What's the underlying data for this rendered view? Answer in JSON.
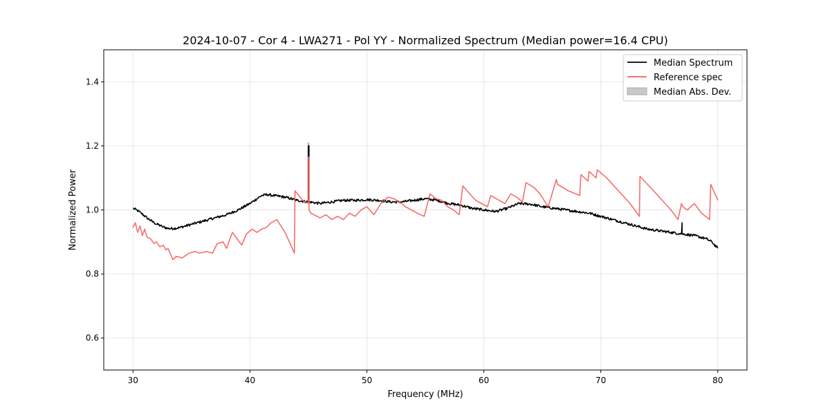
{
  "chart_data": {
    "type": "line",
    "title": "2024-10-07 - Cor 4 - LWA271 - Pol YY - Normalized Spectrum (Median power=16.4 CPU)",
    "xlabel": "Frequency (MHz)",
    "ylabel": "Normalized Power",
    "xlim": [
      27.5,
      82.5
    ],
    "ylim": [
      0.5,
      1.5
    ],
    "xticks": [
      30,
      40,
      50,
      60,
      70,
      80
    ],
    "xtick_labels": [
      "30",
      "40",
      "50",
      "60",
      "70",
      "80"
    ],
    "yticks": [
      0.6,
      0.8,
      1.0,
      1.2,
      1.4
    ],
    "ytick_labels": [
      "0.6",
      "0.8",
      "1.0",
      "1.2",
      "1.4"
    ],
    "grid": true,
    "legend": {
      "placement": "top-right",
      "entries": [
        "Median Spectrum",
        "Reference spec",
        "Median Abs. Dev."
      ]
    },
    "series": [
      {
        "name": "Median Spectrum",
        "color": "#000000",
        "noise": 0.004,
        "x": [
          30,
          30.3,
          30.7,
          31.2,
          31.8,
          32.5,
          33.0,
          33.5,
          34.0,
          35.0,
          36.0,
          37.0,
          38.0,
          39.0,
          40.0,
          41.0,
          41.5,
          42.0,
          43.0,
          44.0,
          45.0,
          45.0,
          45.05,
          45.05,
          45.1,
          46.0,
          47.0,
          48.0,
          49.0,
          50.0,
          51.0,
          52.0,
          53.0,
          54.0,
          55.0,
          56.0,
          57.0,
          58.0,
          59.0,
          60.0,
          61.0,
          62.0,
          63.0,
          64.0,
          65.0,
          66.0,
          67.0,
          68.0,
          69.0,
          70.0,
          71.0,
          72.0,
          73.0,
          74.0,
          75.0,
          76.0,
          76.9,
          76.95,
          76.95,
          77.0,
          78.0,
          79.0,
          79.5,
          80.0
        ],
        "y": [
          1.005,
          1.0,
          0.99,
          0.975,
          0.96,
          0.948,
          0.942,
          0.942,
          0.945,
          0.955,
          0.965,
          0.975,
          0.985,
          1.0,
          1.02,
          1.045,
          1.048,
          1.045,
          1.04,
          1.03,
          1.025,
          1.2,
          1.2,
          1.025,
          1.025,
          1.02,
          1.025,
          1.03,
          1.03,
          1.032,
          1.03,
          1.025,
          1.025,
          1.03,
          1.035,
          1.03,
          1.02,
          1.015,
          1.005,
          1.0,
          0.995,
          1.005,
          1.02,
          1.018,
          1.01,
          1.005,
          1.0,
          0.995,
          0.99,
          0.98,
          0.97,
          0.96,
          0.95,
          0.94,
          0.935,
          0.93,
          0.925,
          0.96,
          0.925,
          0.925,
          0.92,
          0.91,
          0.9,
          0.88
        ]
      },
      {
        "name": "Reference spec",
        "color": "#f55d5d",
        "noise": 0.0,
        "x": [
          30,
          30.2,
          30.4,
          30.6,
          30.8,
          31.0,
          31.2,
          31.5,
          31.8,
          32.0,
          32.3,
          32.6,
          32.8,
          33.0,
          33.4,
          33.7,
          34.2,
          34.8,
          35.3,
          35.7,
          36.3,
          36.8,
          37.2,
          37.7,
          38.0,
          38.5,
          38.8,
          39.3,
          39.7,
          40.2,
          40.6,
          41.0,
          41.4,
          41.8,
          42.3,
          43.0,
          43.8,
          43.85,
          44.5,
          45.0,
          45.0,
          45.05,
          45.05,
          45.2,
          46.0,
          46.5,
          47.0,
          47.5,
          48.0,
          48.5,
          49.0,
          49.5,
          50.0,
          50.6,
          51.2,
          51.8,
          52.3,
          52.8,
          53.3,
          53.8,
          54.3,
          54.9,
          55.4,
          55.9,
          56.4,
          56.9,
          57.4,
          57.9,
          58.2,
          58.8,
          59.3,
          59.8,
          60.3,
          60.6,
          61.3,
          61.8,
          62.3,
          62.8,
          63.3,
          63.6,
          64.3,
          64.8,
          65.5,
          66.2,
          66.3,
          67.2,
          68.2,
          68.3,
          68.9,
          69.0,
          69.6,
          69.7,
          70.5,
          71.5,
          72.5,
          73.3,
          73.35,
          74.5,
          75.5,
          76.0,
          76.6,
          76.9,
          77.0,
          77.4,
          78.0,
          78.6,
          79.3,
          79.4,
          80.0
        ],
        "y": [
          0.945,
          0.96,
          0.93,
          0.95,
          0.92,
          0.94,
          0.915,
          0.91,
          0.895,
          0.9,
          0.885,
          0.89,
          0.875,
          0.88,
          0.845,
          0.855,
          0.85,
          0.865,
          0.87,
          0.865,
          0.87,
          0.865,
          0.895,
          0.9,
          0.88,
          0.93,
          0.915,
          0.89,
          0.925,
          0.94,
          0.93,
          0.94,
          0.945,
          0.96,
          0.97,
          0.93,
          0.865,
          1.06,
          1.03,
          1.02,
          1.165,
          1.165,
          1.0,
          0.99,
          0.975,
          0.985,
          0.97,
          0.98,
          0.97,
          0.99,
          0.98,
          1.0,
          1.01,
          0.985,
          1.02,
          1.04,
          1.035,
          1.025,
          1.01,
          1.0,
          0.99,
          0.98,
          1.05,
          1.035,
          1.03,
          1.01,
          1.0,
          0.985,
          1.075,
          1.05,
          1.03,
          1.02,
          1.01,
          1.045,
          1.03,
          1.02,
          1.05,
          1.04,
          1.025,
          1.085,
          1.07,
          1.05,
          1.01,
          1.095,
          1.08,
          1.06,
          1.045,
          1.11,
          1.09,
          1.12,
          1.1,
          1.125,
          1.1,
          1.06,
          1.02,
          0.98,
          1.105,
          1.06,
          1.02,
          1.0,
          0.97,
          1.02,
          1.01,
          1.0,
          1.02,
          0.99,
          0.97,
          1.08,
          1.03
        ],
        "opacity": 0.9
      }
    ],
    "mad_band": {
      "name": "Median Abs. Dev.",
      "color": "#bfbfbf",
      "note": "thin band around median spectrum; visible mainly as spike near 45 MHz",
      "spike_x": 45.0,
      "spike_top": 1.21
    }
  }
}
